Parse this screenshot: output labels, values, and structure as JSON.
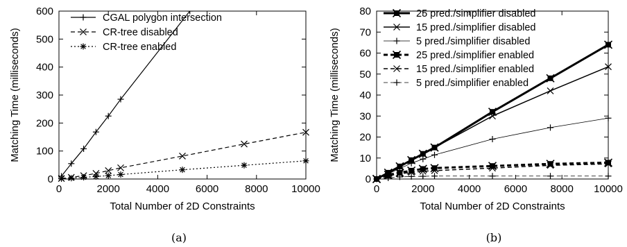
{
  "chart_data": [
    {
      "type": "line",
      "caption": "(a)",
      "xlabel": "Total Number of 2D Constraints",
      "ylabel": "Matching Time (milliseconds)",
      "xlim": [
        0,
        10000
      ],
      "ylim": [
        0,
        600
      ],
      "xticks": [
        0,
        2000,
        4000,
        6000,
        8000,
        10000
      ],
      "yticks": [
        0,
        100,
        200,
        300,
        400,
        500,
        600
      ],
      "grid": false,
      "legend": "top-left",
      "series": [
        {
          "name": "CGAL polygon intersection",
          "dash": "solid",
          "marker": "plus",
          "width": 1.2,
          "x": [
            100,
            500,
            1000,
            1500,
            2000,
            2500,
            5300
          ],
          "y": [
            10,
            55,
            108,
            168,
            225,
            285,
            600
          ]
        },
        {
          "name": "CR-tree disabled",
          "dash": "dashed",
          "marker": "x",
          "width": 1.2,
          "x": [
            100,
            500,
            1000,
            1500,
            2000,
            2500,
            5000,
            7500,
            10000
          ],
          "y": [
            2,
            6,
            12,
            20,
            30,
            40,
            82,
            125,
            167
          ]
        },
        {
          "name": "CR-tree enabled",
          "dash": "dotted",
          "marker": "star",
          "width": 1.2,
          "x": [
            100,
            500,
            1000,
            1500,
            2000,
            2500,
            5000,
            7500,
            10000
          ],
          "y": [
            1,
            3,
            6,
            9,
            12,
            16,
            33,
            49,
            65
          ]
        }
      ]
    },
    {
      "type": "line",
      "caption": "(b)",
      "xlabel": "Total Number of 2D Constraints",
      "ylabel": "Matching Time (milliseconds)",
      "xlim": [
        0,
        10000
      ],
      "ylim": [
        0,
        80
      ],
      "xticks": [
        0,
        2000,
        4000,
        6000,
        8000,
        10000
      ],
      "yticks": [
        0,
        10,
        20,
        30,
        40,
        50,
        60,
        70,
        80
      ],
      "grid": false,
      "legend": "top-left",
      "series": [
        {
          "name": "25 pred./simplifier disabled",
          "dash": "solid",
          "marker": "boxstar",
          "width": 3,
          "x": [
            0,
            500,
            1000,
            1500,
            2000,
            2500,
            5000,
            7500,
            10000
          ],
          "y": [
            0,
            3,
            6,
            9,
            12,
            15,
            32,
            48,
            64
          ]
        },
        {
          "name": "15 pred./simplifier disabled",
          "dash": "solid",
          "marker": "x",
          "width": 1.5,
          "x": [
            0,
            500,
            1000,
            1500,
            2000,
            2500,
            5000,
            7500,
            10000
          ],
          "y": [
            0,
            3,
            6,
            9,
            12,
            15,
            30,
            42,
            53.5
          ]
        },
        {
          "name": "5 pred./simplifier disabled",
          "dash": "solid",
          "marker": "plus",
          "width": 0.8,
          "x": [
            0,
            500,
            1000,
            1500,
            2000,
            2500,
            5000,
            7500,
            10000
          ],
          "y": [
            0,
            2.5,
            5,
            7.5,
            9.5,
            11.5,
            19,
            24.5,
            29
          ]
        },
        {
          "name": "25 pred./simplifier enabled",
          "dash": "dashed",
          "marker": "boxstar",
          "width": 3,
          "x": [
            0,
            500,
            1000,
            1500,
            2000,
            2500,
            5000,
            7500,
            10000
          ],
          "y": [
            0,
            2,
            3,
            4,
            4.8,
            5.2,
            6.2,
            7.2,
            7.8
          ]
        },
        {
          "name": "15 pred./simplifier enabled",
          "dash": "dashed",
          "marker": "x",
          "width": 1.5,
          "x": [
            0,
            500,
            1000,
            1500,
            2000,
            2500,
            5000,
            7500,
            10000
          ],
          "y": [
            0,
            1.5,
            2.5,
            3.2,
            3.7,
            4,
            5.2,
            6.5,
            7.2
          ]
        },
        {
          "name": "5 pred./simplifier enabled",
          "dash": "dashed",
          "marker": "plus",
          "width": 0.8,
          "x": [
            0,
            500,
            1000,
            1500,
            2000,
            2500,
            5000,
            7500,
            10000
          ],
          "y": [
            0,
            0.5,
            1,
            1.2,
            1.3,
            1.4,
            1.4,
            1.4,
            1.4
          ]
        }
      ]
    }
  ]
}
